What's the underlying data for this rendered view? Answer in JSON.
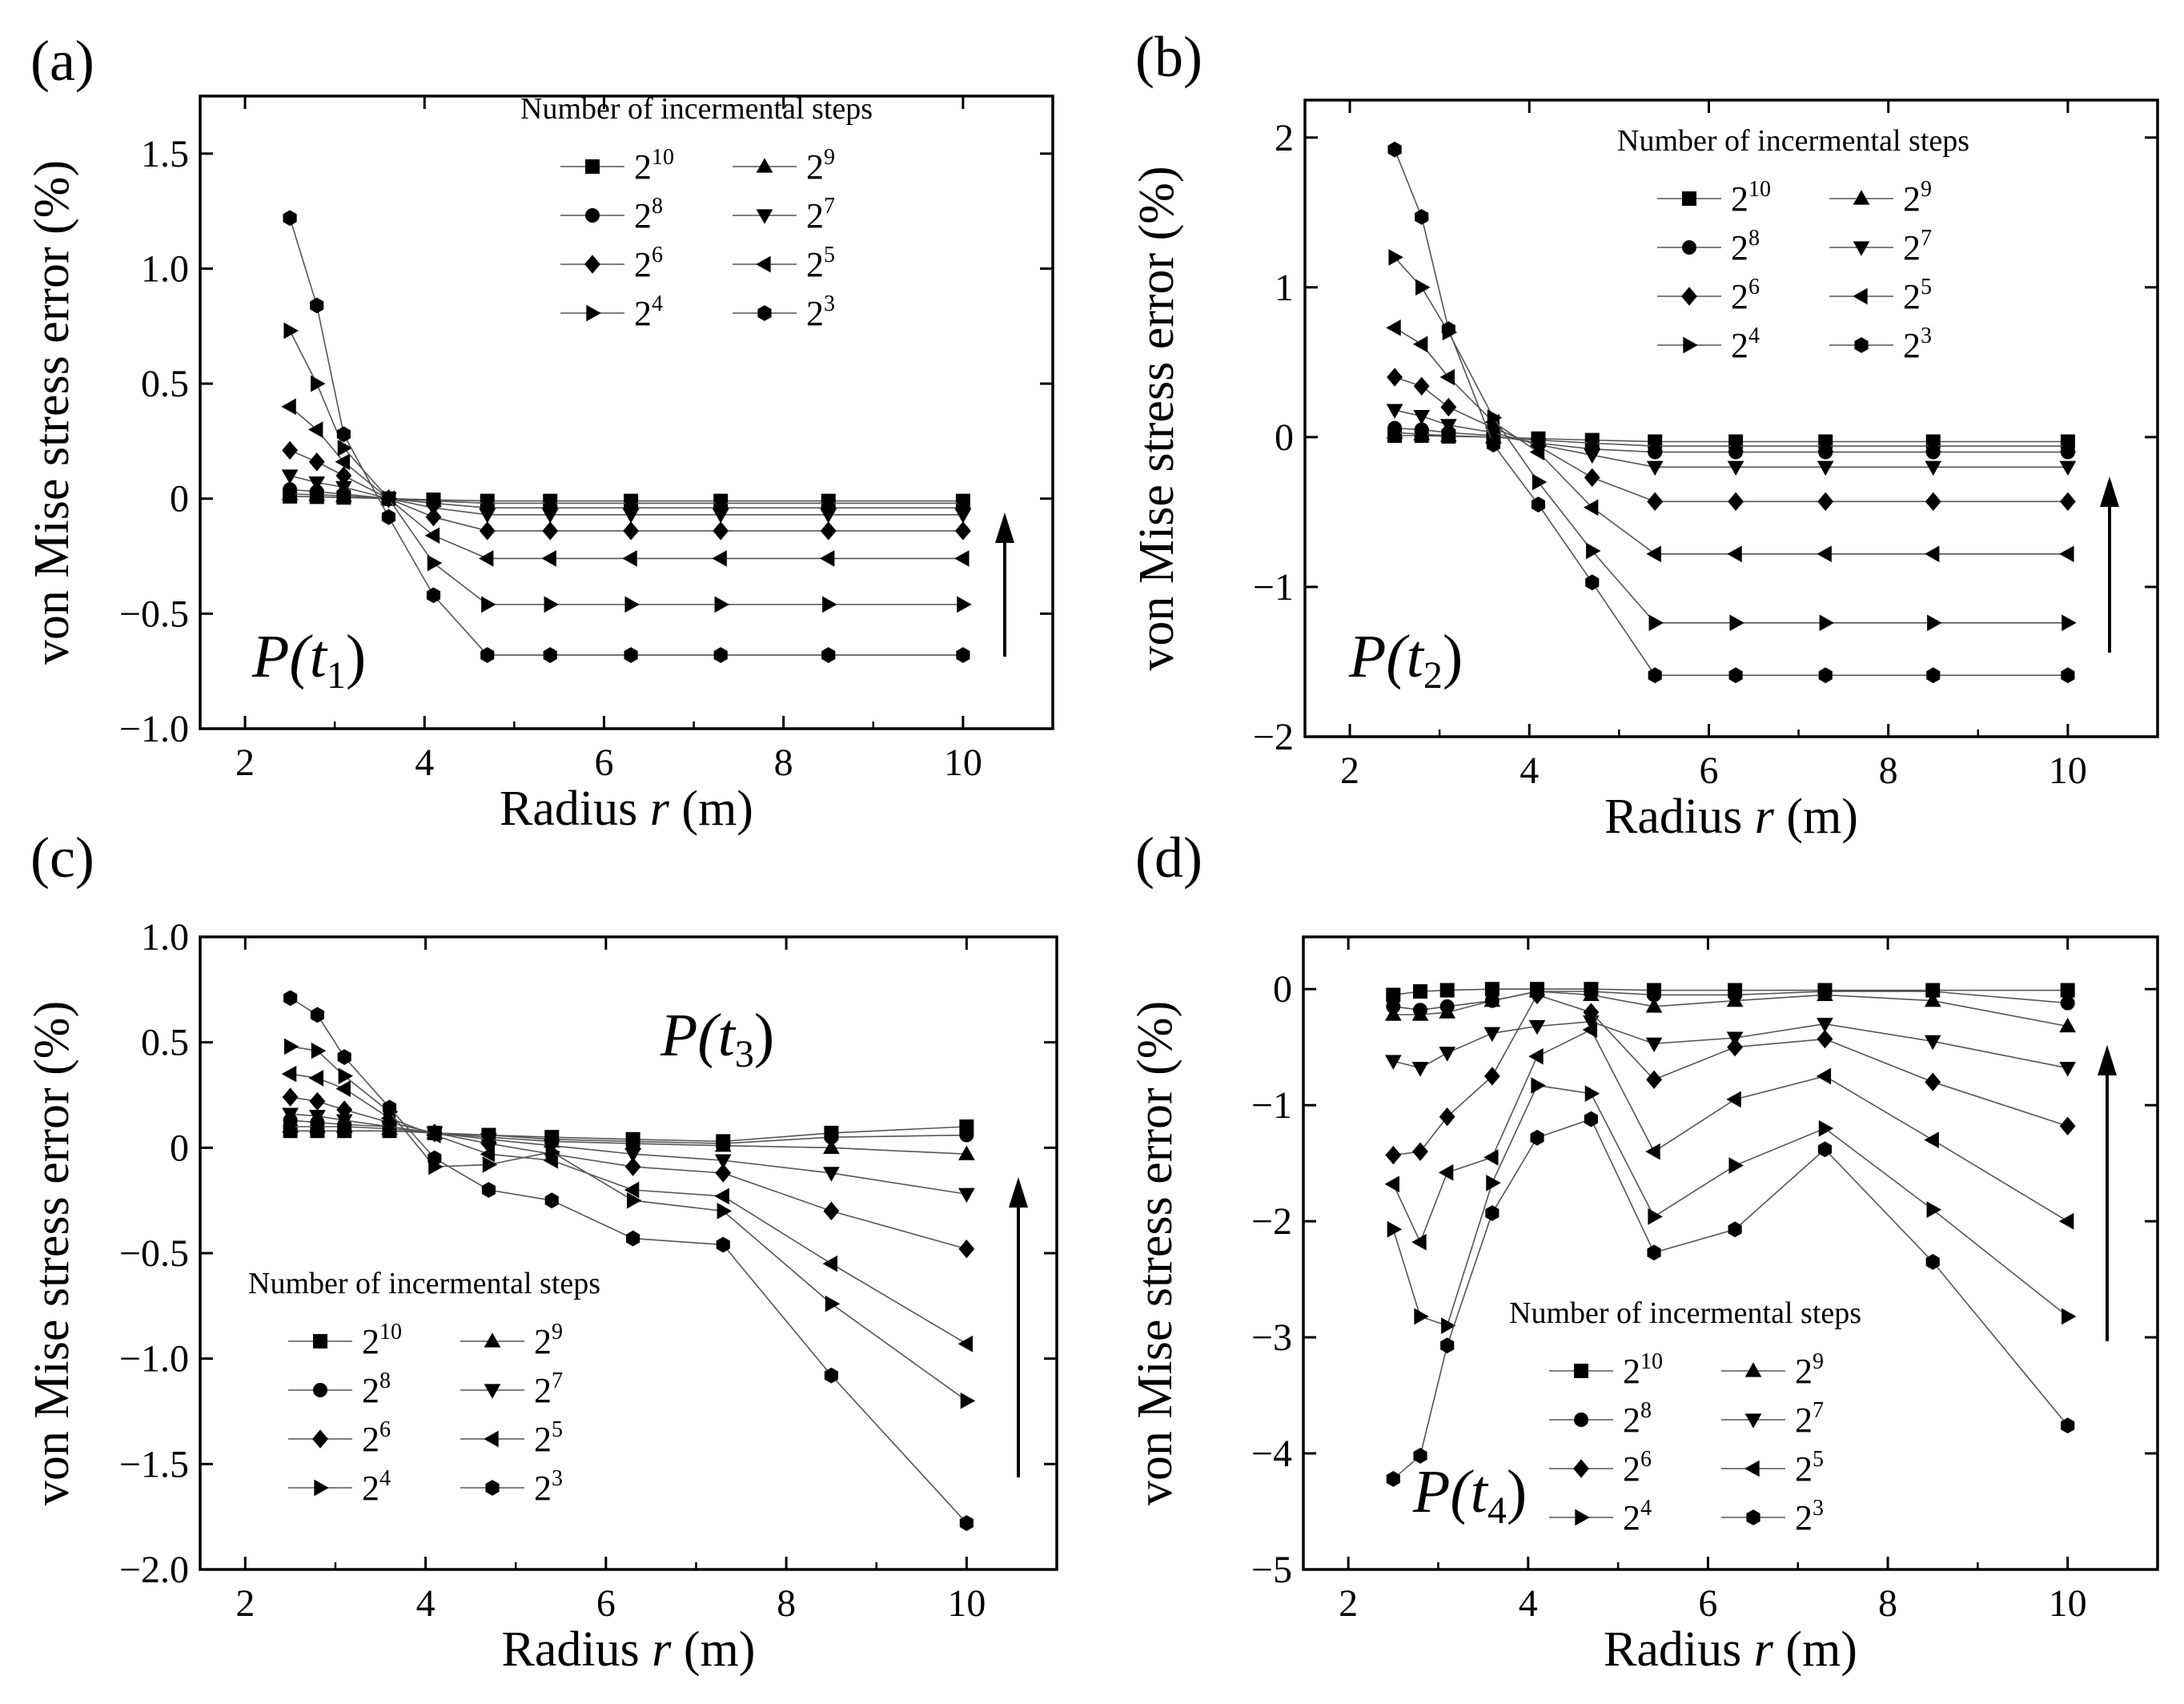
{
  "figure": {
    "xlabel": "Radius",
    "xlabel_var": "r",
    "xlabel_unit": "(m)",
    "ylabel": "von Mise stress error (%)",
    "legend_title": "Number of incermental steps",
    "legend_entries": [
      "2^10",
      "2^9",
      "2^8",
      "2^7",
      "2^6",
      "2^5",
      "2^4",
      "2^3"
    ],
    "arrow_direction": "up"
  },
  "chart_data": [
    {
      "panel": "(a)",
      "type": "line",
      "load_label": "P(t1)",
      "load_var": "P",
      "load_sub": "1",
      "xlim": [
        1.5,
        11
      ],
      "ylim": [
        -1.0,
        1.75
      ],
      "xticks": [
        "2",
        "4",
        "6",
        "8",
        "10"
      ],
      "yticks": [
        "1.5",
        "1.0",
        "0.5",
        "0",
        "−0.5",
        "−1.0"
      ],
      "x": [
        2.5,
        2.8,
        3.1,
        3.6,
        4.1,
        4.7,
        5.4,
        6.3,
        7.3,
        8.5,
        10
      ],
      "series": [
        {
          "name": "2^10",
          "marker": "square",
          "values": [
            0.01,
            0.008,
            0.005,
            0.0,
            -0.005,
            -0.01,
            -0.01,
            -0.01,
            -0.01,
            -0.01,
            -0.01
          ]
        },
        {
          "name": "2^9",
          "marker": "triangle-up",
          "values": [
            0.02,
            0.017,
            0.012,
            0.0,
            -0.01,
            -0.02,
            -0.02,
            -0.02,
            -0.02,
            -0.02,
            -0.02
          ]
        },
        {
          "name": "2^8",
          "marker": "circle",
          "values": [
            0.04,
            0.03,
            0.02,
            0.0,
            -0.02,
            -0.04,
            -0.04,
            -0.04,
            -0.04,
            -0.04,
            -0.04
          ]
        },
        {
          "name": "2^7",
          "marker": "triangle-down",
          "values": [
            0.1,
            0.07,
            0.05,
            0.0,
            -0.04,
            -0.07,
            -0.07,
            -0.07,
            -0.07,
            -0.07,
            -0.07
          ]
        },
        {
          "name": "2^6",
          "marker": "diamond",
          "values": [
            0.21,
            0.16,
            0.1,
            0.0,
            -0.08,
            -0.14,
            -0.14,
            -0.14,
            -0.14,
            -0.14,
            -0.14
          ]
        },
        {
          "name": "2^5",
          "marker": "triangle-left",
          "values": [
            0.4,
            0.3,
            0.16,
            0.0,
            -0.16,
            -0.26,
            -0.26,
            -0.26,
            -0.26,
            -0.26,
            -0.26
          ]
        },
        {
          "name": "2^4",
          "marker": "triangle-right",
          "values": [
            0.73,
            0.5,
            0.22,
            0.0,
            -0.28,
            -0.46,
            -0.46,
            -0.46,
            -0.46,
            -0.46,
            -0.46
          ]
        },
        {
          "name": "2^3",
          "marker": "hexagon",
          "values": [
            1.22,
            0.84,
            0.28,
            -0.08,
            -0.42,
            -0.68,
            -0.68,
            -0.68,
            -0.68,
            -0.68,
            -0.68
          ]
        }
      ]
    },
    {
      "panel": "(b)",
      "type": "line",
      "load_label": "P(t2)",
      "load_var": "P",
      "load_sub": "2",
      "xlim": [
        1.5,
        11
      ],
      "ylim": [
        -2.0,
        2.25
      ],
      "xticks": [
        "2",
        "4",
        "6",
        "8",
        "10"
      ],
      "yticks": [
        "2",
        "1",
        "0",
        "−1",
        "−2"
      ],
      "x": [
        2.5,
        2.8,
        3.1,
        3.6,
        4.1,
        4.7,
        5.4,
        6.3,
        7.3,
        8.5,
        10
      ],
      "series": [
        {
          "name": "2^10",
          "marker": "square",
          "values": [
            0.01,
            0.01,
            0.005,
            0.0,
            -0.01,
            -0.02,
            -0.03,
            -0.03,
            -0.03,
            -0.03,
            -0.03
          ]
        },
        {
          "name": "2^9",
          "marker": "triangle-up",
          "values": [
            0.03,
            0.02,
            0.01,
            0.0,
            -0.02,
            -0.04,
            -0.06,
            -0.06,
            -0.06,
            -0.06,
            -0.06
          ]
        },
        {
          "name": "2^8",
          "marker": "circle",
          "values": [
            0.06,
            0.05,
            0.03,
            0.01,
            -0.04,
            -0.08,
            -0.1,
            -0.1,
            -0.1,
            -0.1,
            -0.1
          ]
        },
        {
          "name": "2^7",
          "marker": "triangle-down",
          "values": [
            0.18,
            0.14,
            0.08,
            0.03,
            -0.05,
            -0.12,
            -0.2,
            -0.2,
            -0.2,
            -0.2,
            -0.2
          ]
        },
        {
          "name": "2^6",
          "marker": "diamond",
          "values": [
            0.4,
            0.34,
            0.2,
            0.06,
            -0.06,
            -0.27,
            -0.43,
            -0.43,
            -0.43,
            -0.43,
            -0.43
          ]
        },
        {
          "name": "2^5",
          "marker": "triangle-left",
          "values": [
            0.73,
            0.62,
            0.4,
            0.1,
            -0.1,
            -0.47,
            -0.78,
            -0.78,
            -0.78,
            -0.78,
            -0.78
          ]
        },
        {
          "name": "2^4",
          "marker": "triangle-right",
          "values": [
            1.2,
            1.0,
            0.7,
            0.13,
            -0.3,
            -0.76,
            -1.24,
            -1.24,
            -1.24,
            -1.24,
            -1.24
          ]
        },
        {
          "name": "2^3",
          "marker": "hexagon",
          "values": [
            1.92,
            1.47,
            0.72,
            -0.05,
            -0.45,
            -0.97,
            -1.59,
            -1.59,
            -1.59,
            -1.59,
            -1.59
          ]
        }
      ]
    },
    {
      "panel": "(c)",
      "type": "line",
      "load_label": "P(t3)",
      "load_var": "P",
      "load_sub": "3",
      "xlim": [
        1.5,
        11
      ],
      "ylim": [
        -2.0,
        1.0
      ],
      "xticks": [
        "2",
        "4",
        "6",
        "8",
        "10"
      ],
      "yticks": [
        "1.0",
        "0.5",
        "0",
        "−0.5",
        "−1.0",
        "−1.5",
        "−2.0"
      ],
      "x": [
        2.5,
        2.8,
        3.1,
        3.6,
        4.1,
        4.7,
        5.4,
        6.3,
        7.3,
        8.5,
        10
      ],
      "series": [
        {
          "name": "2^10",
          "marker": "square",
          "values": [
            0.08,
            0.08,
            0.08,
            0.08,
            0.07,
            0.06,
            0.05,
            0.04,
            0.03,
            0.07,
            0.1
          ]
        },
        {
          "name": "2^9",
          "marker": "triangle-up",
          "values": [
            0.1,
            0.1,
            0.1,
            0.09,
            0.07,
            0.05,
            0.03,
            0.02,
            0.01,
            0.0,
            -0.03
          ]
        },
        {
          "name": "2^8",
          "marker": "circle",
          "values": [
            0.13,
            0.12,
            0.11,
            0.1,
            0.07,
            0.06,
            0.04,
            0.03,
            0.02,
            0.05,
            0.06
          ]
        },
        {
          "name": "2^7",
          "marker": "triangle-down",
          "values": [
            0.16,
            0.15,
            0.13,
            0.1,
            0.07,
            0.04,
            0.01,
            -0.03,
            -0.06,
            -0.12,
            -0.22
          ]
        },
        {
          "name": "2^6",
          "marker": "diamond",
          "values": [
            0.24,
            0.22,
            0.18,
            0.12,
            0.07,
            0.02,
            -0.03,
            -0.09,
            -0.12,
            -0.3,
            -0.48
          ]
        },
        {
          "name": "2^5",
          "marker": "triangle-left",
          "values": [
            0.35,
            0.33,
            0.28,
            0.14,
            0.06,
            -0.03,
            -0.06,
            -0.2,
            -0.23,
            -0.55,
            -0.93
          ]
        },
        {
          "name": "2^4",
          "marker": "triangle-right",
          "values": [
            0.48,
            0.46,
            0.34,
            0.17,
            -0.09,
            -0.08,
            -0.02,
            -0.25,
            -0.3,
            -0.74,
            -1.2
          ]
        },
        {
          "name": "2^3",
          "marker": "hexagon",
          "values": [
            0.71,
            0.63,
            0.43,
            0.19,
            -0.05,
            -0.2,
            -0.25,
            -0.43,
            -0.46,
            -1.08,
            -1.78
          ]
        }
      ]
    },
    {
      "panel": "(d)",
      "type": "line",
      "load_label": "P(t4)",
      "load_var": "P",
      "load_sub": "4",
      "xlim": [
        1.5,
        11
      ],
      "ylim": [
        -5.0,
        0.45
      ],
      "xticks": [
        "2",
        "4",
        "6",
        "8",
        "10"
      ],
      "yticks": [
        "0",
        "−1",
        "−2",
        "−3",
        "−4",
        "−5"
      ],
      "x": [
        2.5,
        2.8,
        3.1,
        3.6,
        4.1,
        4.7,
        5.4,
        6.3,
        7.3,
        8.5,
        10
      ],
      "series": [
        {
          "name": "2^10",
          "marker": "square",
          "values": [
            -0.05,
            -0.02,
            -0.01,
            0.0,
            0.0,
            0.0,
            -0.01,
            -0.01,
            -0.01,
            -0.01,
            -0.01
          ]
        },
        {
          "name": "2^9",
          "marker": "triangle-up",
          "values": [
            -0.22,
            -0.22,
            -0.2,
            -0.1,
            -0.02,
            -0.05,
            -0.15,
            -0.1,
            -0.05,
            -0.1,
            -0.32
          ]
        },
        {
          "name": "2^8",
          "marker": "circle",
          "values": [
            -0.15,
            -0.18,
            -0.15,
            -0.1,
            -0.02,
            -0.02,
            -0.05,
            -0.05,
            -0.02,
            -0.02,
            -0.12
          ]
        },
        {
          "name": "2^7",
          "marker": "triangle-down",
          "values": [
            -0.62,
            -0.68,
            -0.55,
            -0.38,
            -0.32,
            -0.28,
            -0.47,
            -0.42,
            -0.3,
            -0.45,
            -0.68
          ]
        },
        {
          "name": "2^6",
          "marker": "diamond",
          "values": [
            -1.43,
            -1.4,
            -1.1,
            -0.75,
            -0.05,
            -0.2,
            -0.78,
            -0.5,
            -0.43,
            -0.8,
            -1.18
          ]
        },
        {
          "name": "2^5",
          "marker": "triangle-left",
          "values": [
            -1.68,
            -2.18,
            -1.58,
            -1.45,
            -0.58,
            -0.35,
            -1.4,
            -0.95,
            -0.75,
            -1.3,
            -2.0
          ]
        },
        {
          "name": "2^4",
          "marker": "triangle-right",
          "values": [
            -2.07,
            -2.82,
            -2.9,
            -1.67,
            -0.83,
            -0.9,
            -1.96,
            -1.52,
            -1.2,
            -1.9,
            -2.82
          ]
        },
        {
          "name": "2^3",
          "marker": "hexagon",
          "values": [
            -4.22,
            -4.02,
            -3.07,
            -1.93,
            -1.28,
            -1.12,
            -2.27,
            -2.07,
            -1.38,
            -2.35,
            -3.76
          ]
        }
      ]
    }
  ]
}
